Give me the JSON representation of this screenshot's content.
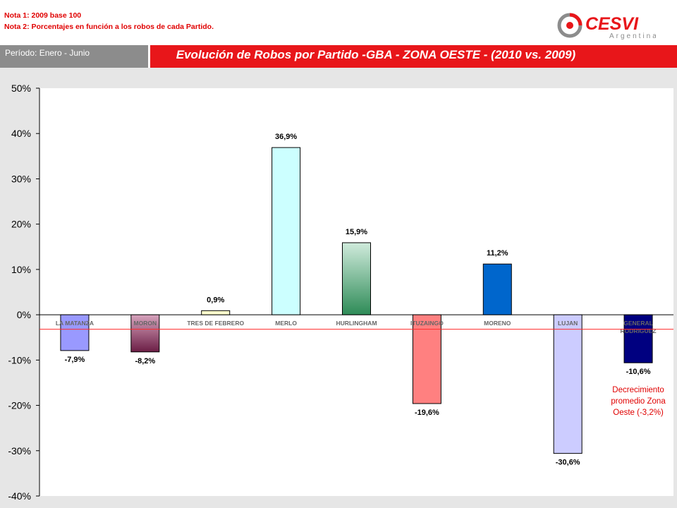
{
  "header": {
    "nota1": "Nota 1: 2009 base 100",
    "nota2": "Nota 2: Porcentajes en función a los robos de cada Partido.",
    "logo_text": "CESVI",
    "logo_subtext": "Argentina"
  },
  "period": "Período: Enero - Junio",
  "colors": {
    "brand_red": "#e8161a",
    "period_gray": "#8c8c8c",
    "average_line": "#ff2a2a"
  },
  "chart_data": {
    "type": "bar",
    "title": "Evolución de Robos por Partido -GBA - ZONA OESTE - (2010 vs. 2009)",
    "categories": [
      "LA MATANZA",
      "MORON",
      "TRES DE FEBRERO",
      "MERLO",
      "HURLINGHAM",
      "ITUZAINGO",
      "MORENO",
      "LUJAN",
      "GENERAL RODRIGUEZ"
    ],
    "values": [
      -7.9,
      -8.2,
      0.9,
      36.9,
      15.9,
      -19.6,
      11.2,
      -30.6,
      -10.6
    ],
    "data_labels": [
      "-7,9%",
      "-8,2%",
      "0,9%",
      "36,9%",
      "15,9%",
      "-19,6%",
      "11,2%",
      "-30,6%",
      "-10,6%"
    ],
    "bar_colors": [
      "#9999ff",
      "#993366",
      "#ffffcc",
      "#ccffff",
      "#339966",
      "#ff8080",
      "#0066cc",
      "#ccccff",
      "#000080"
    ],
    "ylim": [
      -40,
      50
    ],
    "yticks": [
      -40,
      -30,
      -20,
      -10,
      0,
      10,
      20,
      30,
      40,
      50
    ],
    "ytick_labels": [
      "-40%",
      "-30%",
      "-20%",
      "-10%",
      "0%",
      "10%",
      "20%",
      "30%",
      "40%",
      "50%"
    ],
    "grid": false,
    "average": {
      "value": -3.2,
      "label_lines": [
        "Decrecimiento",
        "promedio Zona",
        "Oeste (-3,2%)"
      ]
    }
  }
}
